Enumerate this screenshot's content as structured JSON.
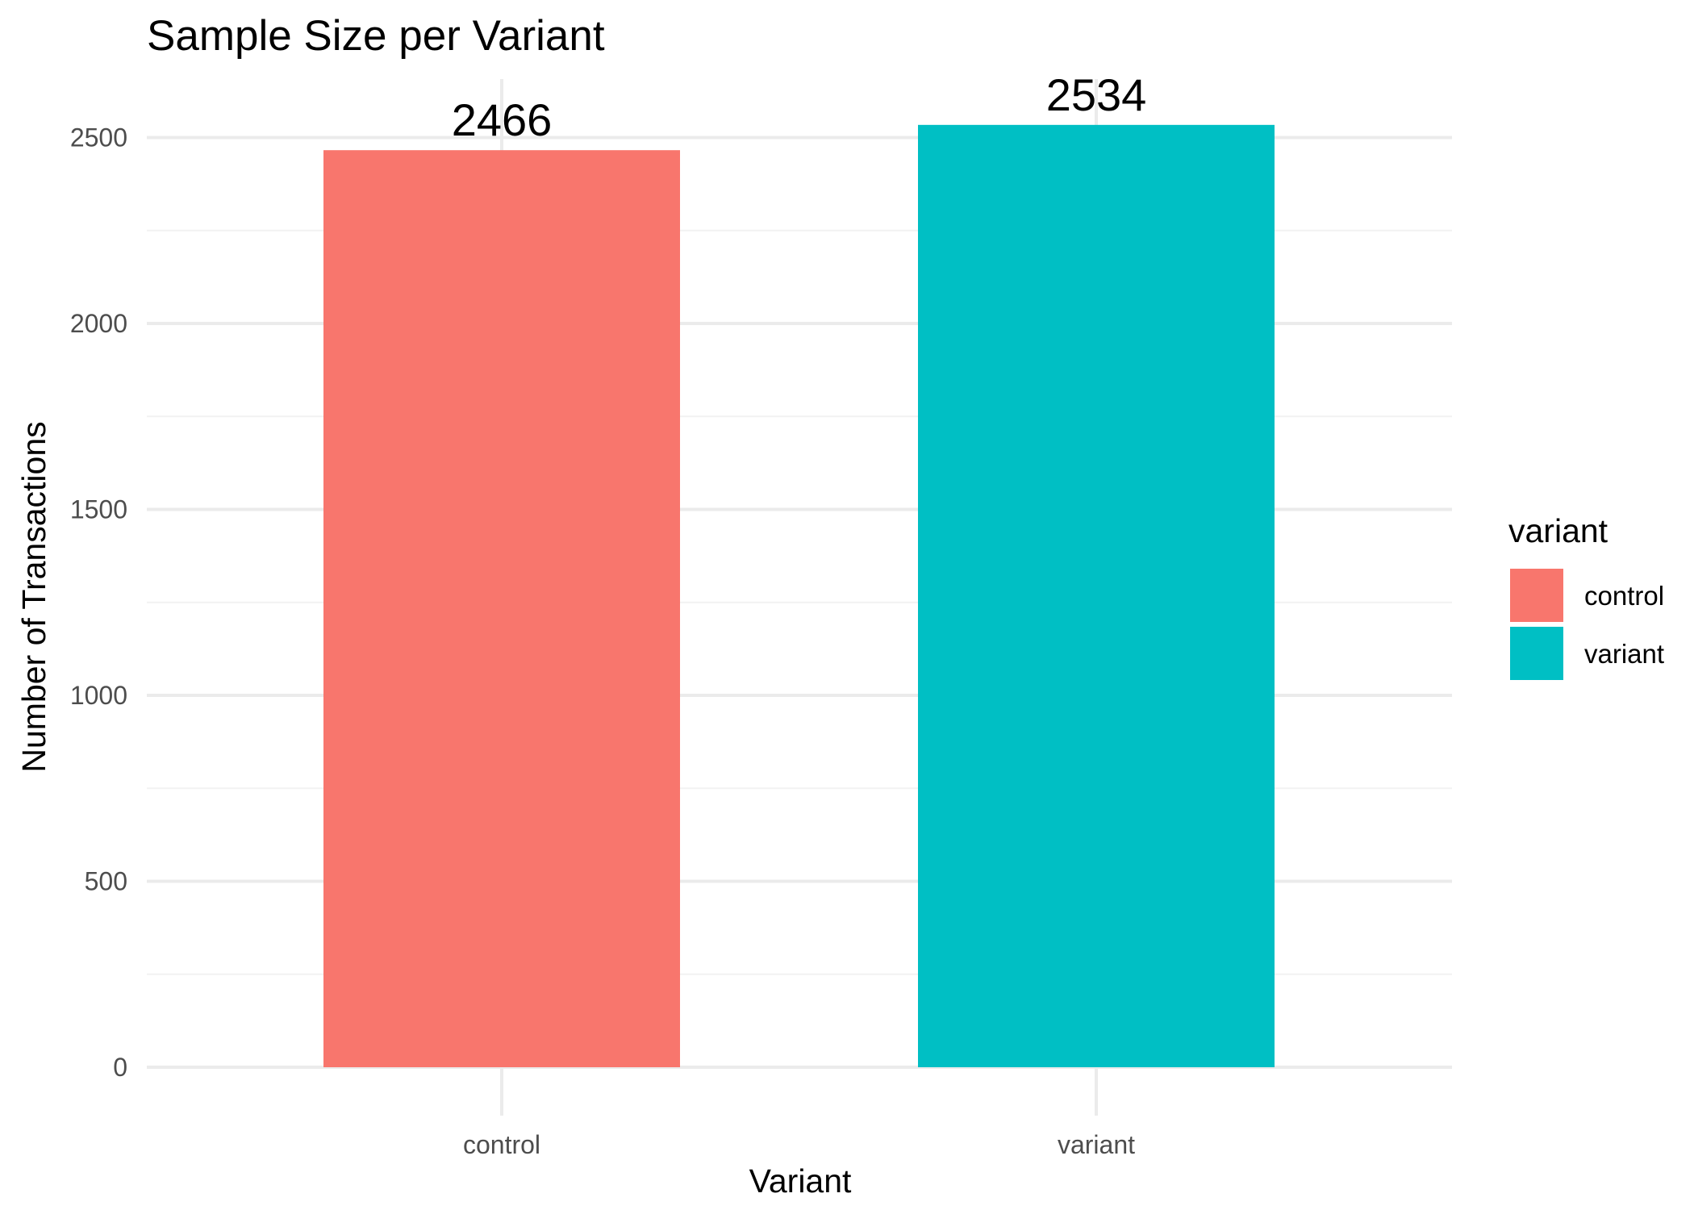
{
  "chart_data": {
    "type": "bar",
    "title": "Sample Size per Variant",
    "xlabel": "Variant",
    "ylabel": "Number of Transactions",
    "categories": [
      "control",
      "variant"
    ],
    "values": [
      2466,
      2534
    ],
    "data_labels": [
      "2466",
      "2534"
    ],
    "ylim": [
      0,
      2650
    ],
    "yticks": [
      0,
      500,
      1000,
      1500,
      2000,
      2500
    ],
    "ytick_labels": [
      "0",
      "500",
      "1000",
      "1500",
      "2000",
      "2500"
    ],
    "grid": true,
    "legend": {
      "title": "variant",
      "placement": "right",
      "entries": [
        "control",
        "variant"
      ]
    },
    "colors": {
      "control": "#F8766D",
      "variant": "#00BFC4"
    }
  }
}
